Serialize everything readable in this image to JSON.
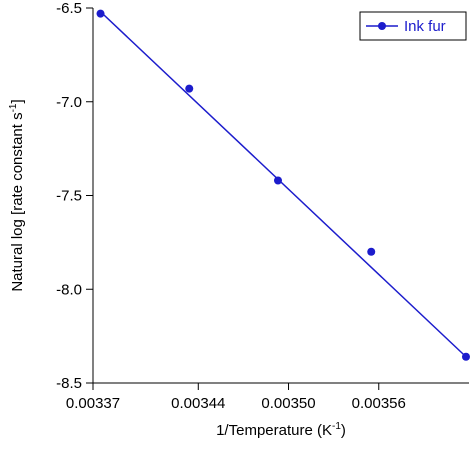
{
  "chart_data": {
    "type": "scatter",
    "y_label": {
      "text": "Natural log [rate constant s",
      "sup": "-1",
      "end": "]"
    },
    "x_label": {
      "text": "1/Temperature (K",
      "sup": "-1",
      "end": ")"
    },
    "series": [
      {
        "name": "Ink fur",
        "color": "#1c1ccc",
        "x": [
          0.003375,
          0.003434,
          0.003493,
          0.003555,
          0.003618
        ],
        "values": [
          -6.53,
          -6.93,
          -7.42,
          -7.8,
          -8.36
        ]
      }
    ],
    "fit_line": {
      "x": [
        0.003375,
        0.003618
      ],
      "values": [
        -6.52,
        -8.36
      ],
      "color": "#1c1ccc"
    },
    "xlim": [
      0.00337,
      0.00362
    ],
    "xticks": [
      {
        "value": 0.00337,
        "label": "0.00337"
      },
      {
        "value": 0.00344,
        "label": "0.00344"
      },
      {
        "value": 0.0035,
        "label": "0.00350"
      },
      {
        "value": 0.00356,
        "label": "0.00356"
      }
    ],
    "ylim": [
      -8.5,
      -6.5
    ],
    "yticks": [
      -6.5,
      {
        "value": -7,
        "label": "-7.0"
      },
      -7.5,
      {
        "value": -8,
        "label": "-8.0"
      },
      -8.5
    ],
    "legend": "top-right",
    "grid": false
  }
}
